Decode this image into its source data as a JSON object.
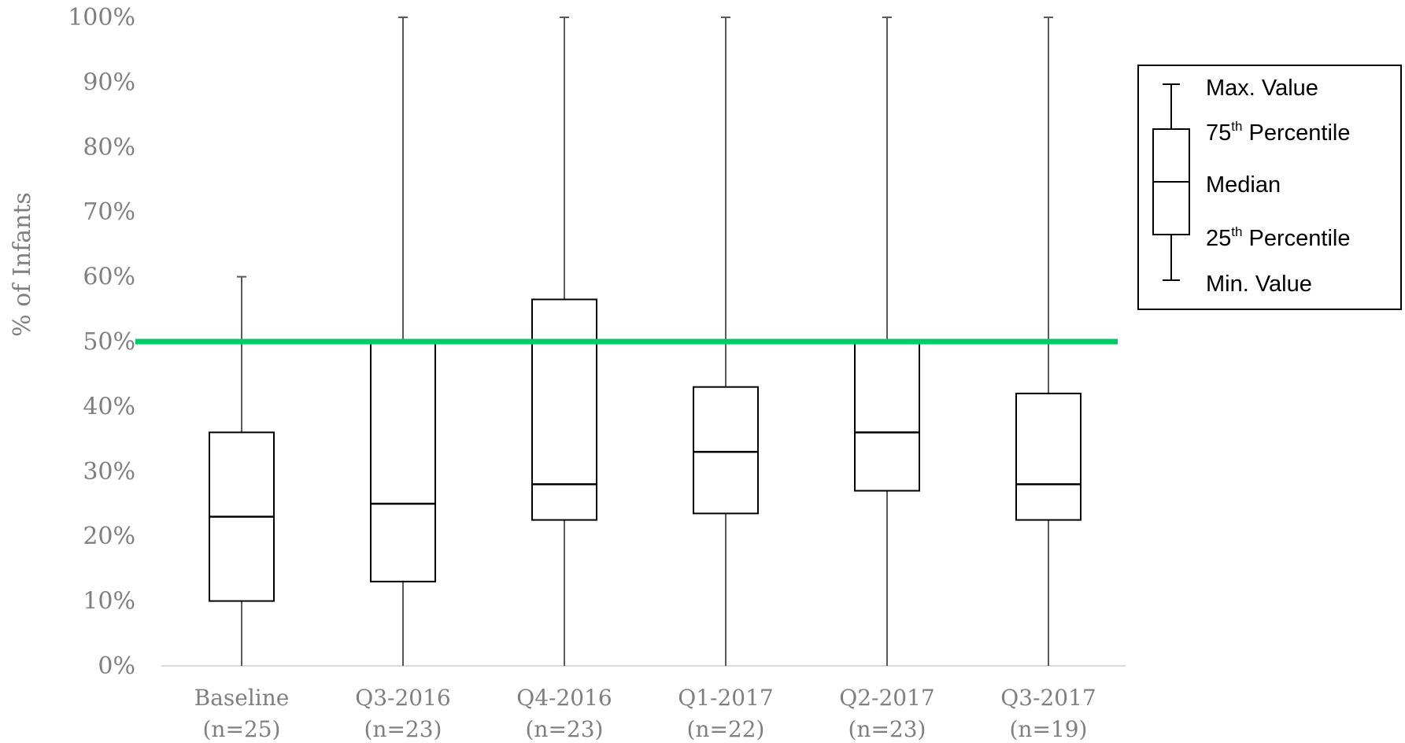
{
  "chart_data": {
    "type": "box",
    "ylabel": "% of Infants",
    "xlabel": "",
    "ylim": [
      0,
      100
    ],
    "yticks": [
      "0%",
      "10%",
      "20%",
      "30%",
      "40%",
      "50%",
      "60%",
      "70%",
      "80%",
      "90%",
      "100%"
    ],
    "categories": [
      {
        "line1": "Baseline",
        "line2": "(n=25)"
      },
      {
        "line1": "Q3-2016",
        "line2": "(n=23)"
      },
      {
        "line1": "Q4-2016",
        "line2": "(n=23)"
      },
      {
        "line1": "Q1-2017",
        "line2": "(n=22)"
      },
      {
        "line1": "Q2-2017",
        "line2": "(n=23)"
      },
      {
        "line1": "Q3-2017",
        "line2": "(n=19)"
      }
    ],
    "boxes": [
      {
        "min": 0,
        "q1": 10,
        "median": 23,
        "q3": 36,
        "max": 60
      },
      {
        "min": 0,
        "q1": 13,
        "median": 25,
        "q3": 50,
        "max": 100
      },
      {
        "min": 0,
        "q1": 22.5,
        "median": 28,
        "q3": 56.5,
        "max": 100
      },
      {
        "min": 0,
        "q1": 23.5,
        "median": 33,
        "q3": 43,
        "max": 100
      },
      {
        "min": 0,
        "q1": 27,
        "median": 36,
        "q3": 50,
        "max": 100
      },
      {
        "min": 0,
        "q1": 22.5,
        "median": 28,
        "q3": 42,
        "max": 100
      }
    ],
    "reference_line": {
      "value": 50,
      "color": "#00cc66"
    },
    "grid": false,
    "legend_position": "right",
    "legend": {
      "max": "Max. Value",
      "p75": {
        "base": "75",
        "sup": "th",
        "rest": " Percentile"
      },
      "median": "Median",
      "p25": {
        "base": "25",
        "sup": "th",
        "rest": " Percentile"
      },
      "min": "Min. Value"
    }
  }
}
